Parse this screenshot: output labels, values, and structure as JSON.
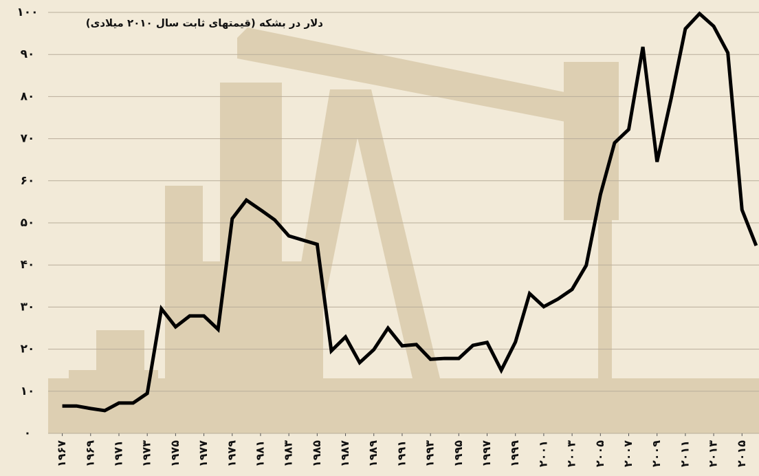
{
  "chart_data": {
    "type": "line",
    "title": "دلار در بشکه (قیمتهای ثابت سال ۲۰۱۰ میلادی)",
    "x": [
      1967,
      1968,
      1969,
      1970,
      1971,
      1972,
      1973,
      1974,
      1975,
      1976,
      1977,
      1978,
      1979,
      1980,
      1981,
      1982,
      1983,
      1984,
      1985,
      1986,
      1987,
      1988,
      1989,
      1990,
      1991,
      1992,
      1993,
      1994,
      1995,
      1996,
      1997,
      1998,
      1999,
      2000,
      2001,
      2002,
      2003,
      2004,
      2005,
      2006,
      2007,
      2008,
      2009,
      2010,
      2011,
      2012,
      2013,
      2014,
      2015,
      2016
    ],
    "series": [
      {
        "color": "#000000",
        "values": [
          6.5,
          6.5,
          5.9,
          5.4,
          7.2,
          7.2,
          9.5,
          29.6,
          25.3,
          27.9,
          27.9,
          24.7,
          51,
          55.4,
          53.1,
          50.7,
          46.9,
          45.9,
          44.9,
          19.6,
          22.9,
          16.8,
          19.9,
          25,
          20.8,
          21.1,
          17.6,
          17.8,
          17.8,
          20.9,
          21.6,
          15,
          21.7,
          33.2,
          30.1,
          31.9,
          34.2,
          39.9,
          56.7,
          69,
          72.2,
          91.8,
          64.5,
          79.6,
          96.1,
          99.7,
          96.7,
          90.4,
          53.1,
          44.6
        ]
      }
    ],
    "xlim": [
      1966,
      2016.2
    ],
    "ylim": [
      0,
      100
    ],
    "yticks": [
      {
        "value": 0,
        "label": "۰"
      },
      {
        "value": 10,
        "label": "۱۰"
      },
      {
        "value": 20,
        "label": "۲۰"
      },
      {
        "value": 30,
        "label": "۳۰"
      },
      {
        "value": 40,
        "label": "۴۰"
      },
      {
        "value": 50,
        "label": "۵۰"
      },
      {
        "value": 60,
        "label": "۶۰"
      },
      {
        "value": 70,
        "label": "۷۰"
      },
      {
        "value": 80,
        "label": "۸۰"
      },
      {
        "value": 90,
        "label": "۹۰"
      },
      {
        "value": 100,
        "label": "۱۰۰"
      }
    ],
    "xticks": [
      {
        "value": 1967,
        "label": "۱۹۶۷"
      },
      {
        "value": 1969,
        "label": "۱۹۶۹"
      },
      {
        "value": 1971,
        "label": "۱۹۷۱"
      },
      {
        "value": 1973,
        "label": "۱۹۷۳"
      },
      {
        "value": 1975,
        "label": "۱۹۷۵"
      },
      {
        "value": 1977,
        "label": "۱۹۷۷"
      },
      {
        "value": 1979,
        "label": "۱۹۷۹"
      },
      {
        "value": 1981,
        "label": "۱۹۸۱"
      },
      {
        "value": 1983,
        "label": "۱۹۸۳"
      },
      {
        "value": 1985,
        "label": "۱۹۸۵"
      },
      {
        "value": 1987,
        "label": "۱۹۸۷"
      },
      {
        "value": 1989,
        "label": "۱۹۸۹"
      },
      {
        "value": 1991,
        "label": "۱۹۹۱"
      },
      {
        "value": 1993,
        "label": "۱۹۹۳"
      },
      {
        "value": 1995,
        "label": "۱۹۹۵"
      },
      {
        "value": 1997,
        "label": "۱۹۹۷"
      },
      {
        "value": 1999,
        "label": "۱۹۹۹"
      },
      {
        "value": 2001,
        "label": "۲۰۰۱"
      },
      {
        "value": 2003,
        "label": "۲۰۰۳"
      },
      {
        "value": 2005,
        "label": "۲۰۰۵"
      },
      {
        "value": 2007,
        "label": "۲۰۰۷"
      },
      {
        "value": 2009,
        "label": "۲۰۰۹"
      },
      {
        "value": 2011,
        "label": "۲۰۱۱"
      },
      {
        "value": 2013,
        "label": "۲۰۱۳"
      },
      {
        "value": 2015,
        "label": "۲۰۱۵"
      }
    ],
    "grid": true
  }
}
